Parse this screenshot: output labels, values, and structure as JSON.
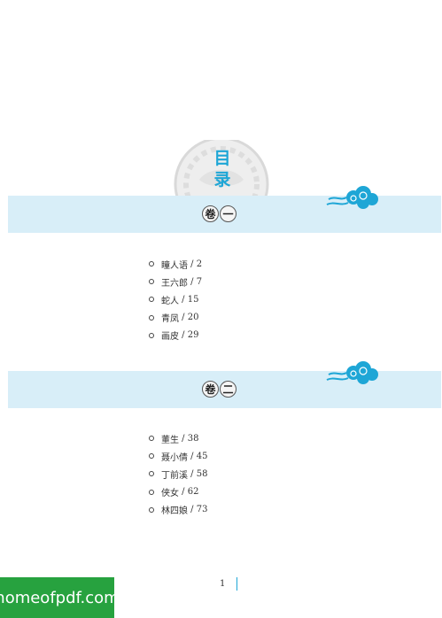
{
  "contents_title": {
    "char1": "目",
    "char2": "录"
  },
  "volumes": [
    {
      "label_1": "卷",
      "label_2": "一",
      "entries": [
        {
          "title": "瞳人语",
          "page": "2"
        },
        {
          "title": "王六郎",
          "page": "7"
        },
        {
          "title": "蛇人",
          "page": "15"
        },
        {
          "title": "青凤",
          "page": "20"
        },
        {
          "title": "画皮",
          "page": "29"
        }
      ]
    },
    {
      "label_1": "卷",
      "label_2": "二",
      "entries": [
        {
          "title": "董生",
          "page": "38"
        },
        {
          "title": "聂小倩",
          "page": "45"
        },
        {
          "title": "丁前溪",
          "page": "58"
        },
        {
          "title": "侠女",
          "page": "62"
        },
        {
          "title": "林四娘",
          "page": "73"
        }
      ]
    }
  ],
  "page_number": "1",
  "watermark": "homeofpdf.com",
  "colors": {
    "accent": "#1ea6d6",
    "band": "#d8eef8",
    "watermark_bg": "#27a23f"
  }
}
